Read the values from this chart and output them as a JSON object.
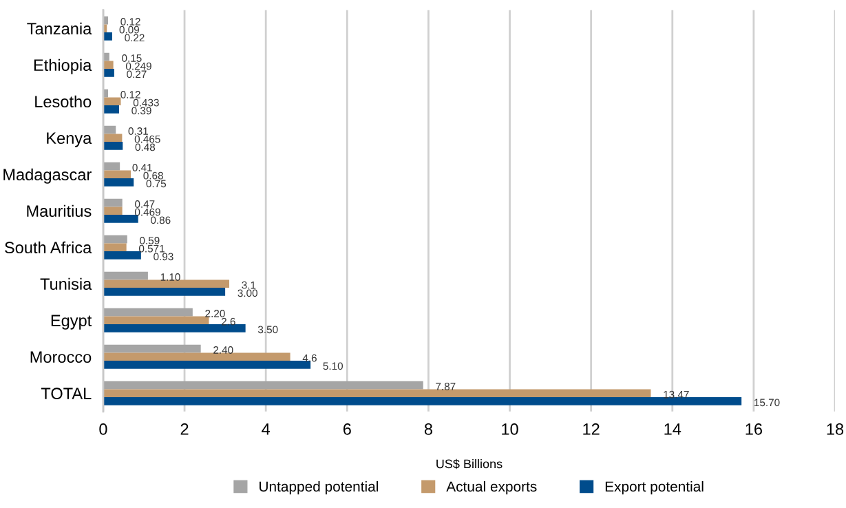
{
  "chart_data": {
    "type": "bar",
    "orientation": "horizontal",
    "xlabel": "US$ Billions",
    "categories": [
      "Tanzania",
      "Ethiopia",
      "Lesotho",
      "Kenya",
      "Madagascar",
      "Mauritius",
      "South Africa",
      "Tunisia",
      "Egypt",
      "Morocco",
      "TOTAL"
    ],
    "series": [
      {
        "name": "Untapped potential",
        "color": "#a5a5a5",
        "values": [
          0.12,
          0.15,
          0.12,
          0.31,
          0.41,
          0.47,
          0.59,
          1.1,
          2.2,
          2.4,
          7.87
        ],
        "value_labels": [
          "0.12",
          "0.15",
          "0.12",
          "0.31",
          "0.41",
          "0.47",
          "0.59",
          "1.10",
          "2.20",
          "2.40",
          "7.87"
        ]
      },
      {
        "name": "Actual exports",
        "color": "#c49a6c",
        "values": [
          0.09,
          0.249,
          0.433,
          0.465,
          0.68,
          0.469,
          0.571,
          3.1,
          2.6,
          4.6,
          13.47
        ],
        "value_labels": [
          "0.09",
          "0.249",
          "0.433",
          "0.465",
          "0.68",
          "0.469",
          "0.571",
          "3.1",
          "2.6",
          "4.6",
          "13.47"
        ]
      },
      {
        "name": "Export potential",
        "color": "#004c8c",
        "values": [
          0.22,
          0.27,
          0.39,
          0.48,
          0.75,
          0.86,
          0.93,
          3.0,
          3.5,
          5.1,
          15.7
        ],
        "value_labels": [
          "0.22",
          "0.27",
          "0.39",
          "0.48",
          "0.75",
          "0.86",
          "0.93",
          "3.00",
          "3.50",
          "5.10",
          "15.70"
        ]
      }
    ],
    "xlim": [
      0,
      18
    ],
    "xticks": [
      0,
      2,
      4,
      6,
      8,
      10,
      12,
      14,
      16,
      18
    ],
    "grid": "x",
    "legend": "bottom"
  }
}
